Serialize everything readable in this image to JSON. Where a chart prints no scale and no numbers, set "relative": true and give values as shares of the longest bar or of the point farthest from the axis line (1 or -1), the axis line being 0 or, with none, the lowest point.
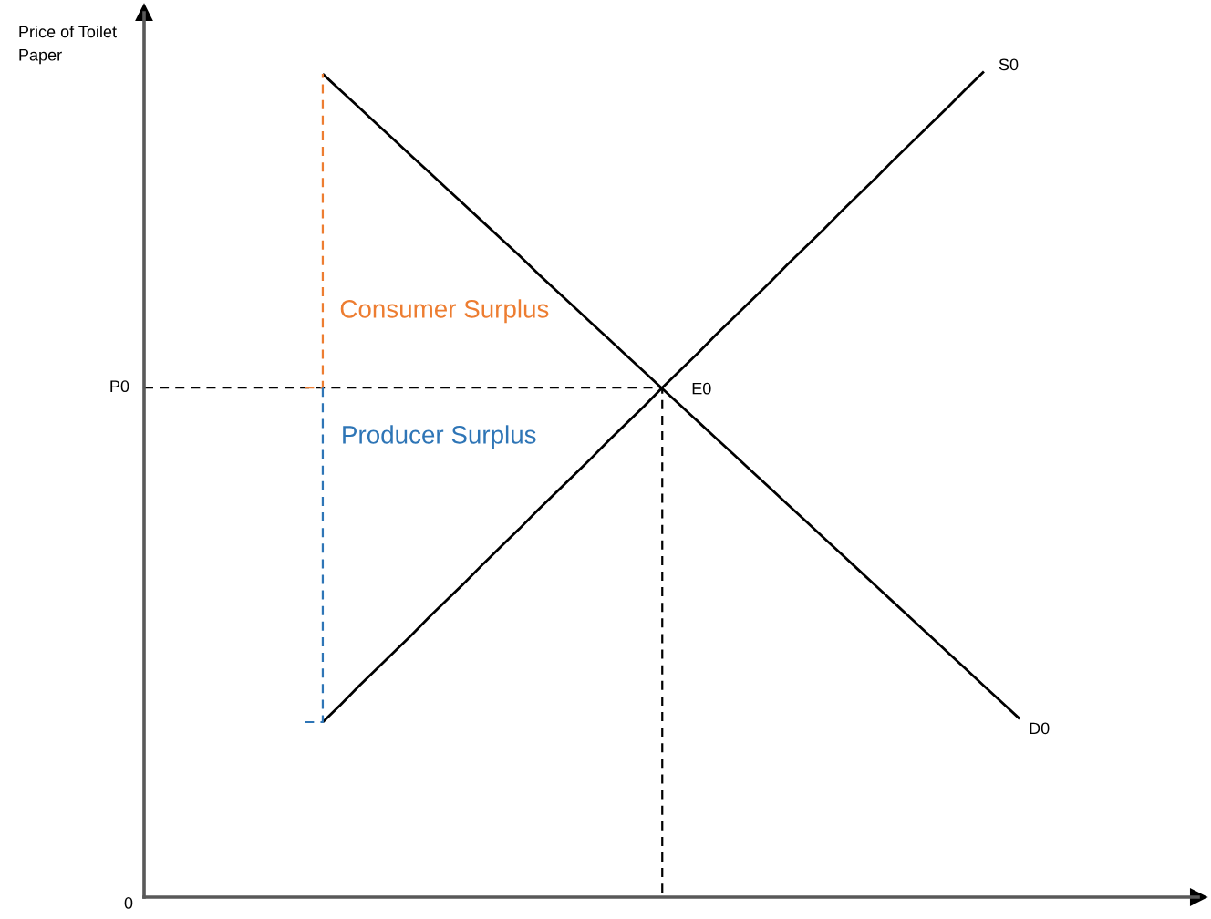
{
  "chart_data": {
    "type": "line",
    "relative": true,
    "ylabel": "Price of Toilet Paper",
    "annotations": [
      "0",
      "E0"
    ],
    "categories": [
      null,
      null,
      null,
      null,
      null,
      null,
      null,
      null,
      null,
      null,
      null,
      null,
      null,
      null,
      null,
      null,
      null,
      null,
      null,
      null,
      null,
      null,
      null,
      null,
      null,
      null,
      null,
      null,
      null,
      null,
      null,
      null,
      null,
      null,
      null,
      null,
      null,
      null,
      null,
      null,
      null,
      null,
      null,
      null,
      null,
      null,
      null,
      null,
      null,
      null
    ],
    "series": [
      {
        "name": "S0",
        "color": "#000000",
        "values": [
          null,
          null,
          null,
          null,
          null,
          null,
          null,
          null,
          null,
          null,
          0.212,
          0.233,
          0.255,
          0.276,
          0.297,
          0.318,
          0.34,
          0.361,
          0.382,
          0.404,
          0.425,
          0.446,
          0.468,
          0.489,
          0.51,
          0.531,
          0.553,
          0.574,
          0.595,
          0.617,
          0.638,
          0.659,
          0.681,
          0.702,
          0.723,
          0.744,
          0.766,
          0.787,
          0.808,
          0.83,
          0.851,
          0.872,
          0.894,
          0.915,
          0.936,
          0.957,
          0.979,
          1,
          null,
          null
        ]
      },
      {
        "name": "D0",
        "color": "#000000",
        "values": [
          null,
          null,
          null,
          null,
          null,
          null,
          null,
          null,
          null,
          null,
          0.997,
          0.977,
          0.957,
          0.937,
          0.917,
          0.897,
          0.877,
          0.857,
          0.837,
          0.817,
          0.797,
          0.777,
          0.756,
          0.736,
          0.716,
          0.696,
          0.676,
          0.656,
          0.636,
          0.616,
          0.596,
          0.576,
          0.556,
          0.536,
          0.516,
          0.496,
          0.476,
          0.456,
          0.436,
          0.416,
          0.396,
          0.376,
          0.356,
          0.336,
          0.316,
          0.296,
          0.276,
          0.256,
          0.236,
          0.216
        ]
      },
      {
        "name": "P0",
        "type": "step",
        "color": "#000000",
        "line_style": "dashed",
        "values": [
          0.617,
          0.617,
          0.617,
          0.617,
          0.617,
          0.617,
          0.617,
          0.617,
          0.617,
          0.617,
          0.617,
          0.617,
          0.617,
          0.617,
          0.617,
          0.617,
          0.617,
          0.617,
          0.617,
          0.617,
          0.617,
          0.617,
          0.617,
          0.617,
          0.617,
          0.617,
          0.617,
          0.617,
          0.617,
          0,
          null,
          null,
          null,
          null,
          null,
          null,
          null,
          null,
          null,
          null,
          null,
          null,
          null,
          null,
          null,
          null,
          null,
          null,
          null,
          null
        ]
      },
      {
        "name": "Consumer Surplus",
        "type": "step",
        "color": "#ed7d31",
        "line_style": "dashed",
        "values": [
          null,
          null,
          null,
          null,
          null,
          null,
          null,
          null,
          null,
          0.617,
          0.997,
          null,
          null,
          null,
          null,
          null,
          null,
          null,
          null,
          null,
          null,
          null,
          null,
          null,
          null,
          null,
          null,
          null,
          null,
          null,
          null,
          null,
          null,
          null,
          null,
          null,
          null,
          null,
          null,
          null,
          null,
          null,
          null,
          null,
          null,
          null,
          null,
          null,
          null,
          null
        ]
      },
      {
        "name": "Producer Surplus",
        "type": "step",
        "color": "#2e75b6",
        "line_style": "dashed",
        "values": [
          null,
          null,
          null,
          null,
          null,
          null,
          null,
          null,
          null,
          0.212,
          0.617,
          null,
          null,
          null,
          null,
          null,
          null,
          null,
          null,
          null,
          null,
          null,
          null,
          null,
          null,
          null,
          null,
          null,
          null,
          null,
          null,
          null,
          null,
          null,
          null,
          null,
          null,
          null,
          null,
          null,
          null,
          null,
          null,
          null,
          null,
          null,
          null,
          null,
          null,
          null
        ]
      }
    ]
  }
}
